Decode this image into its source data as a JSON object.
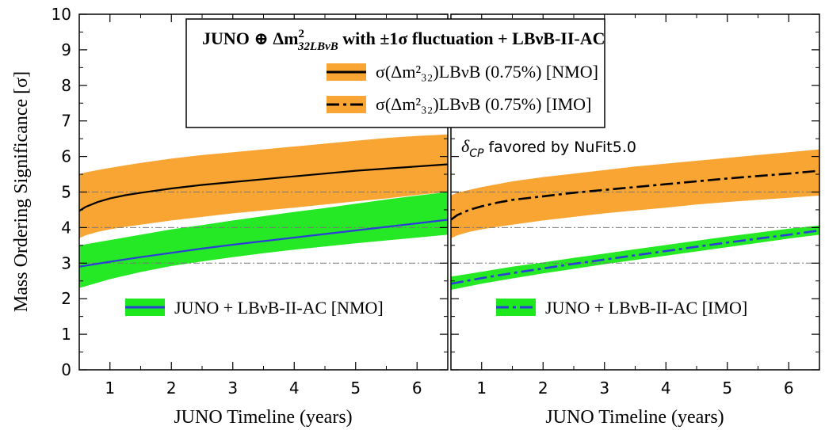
{
  "chart_data": {
    "type": "area",
    "ylabel": "Mass Ordering Significance [σ]",
    "ylim": [
      0,
      10
    ],
    "yticks": [
      "0",
      "1",
      "2",
      "3",
      "4",
      "5",
      "6",
      "7",
      "8",
      "9",
      "10"
    ],
    "reference_lines_sigma": [
      3,
      4,
      5
    ],
    "colors": {
      "orange_band": "#f8a534",
      "green_band": "#1de81d",
      "blue_line": "#2b3fd6",
      "black_line": "#000000",
      "ref_line": "#777777"
    },
    "legend": {
      "title_bold_1": "JUNO ⊕ Δm",
      "title_sup": "2",
      "title_sub": "32LBνB",
      "title_bold_2": " with ±1σ fluctuation + LBνB-II-AC",
      "nmo_label": "σ(Δm²₃₂)LBνB (0.75%) [NMO]",
      "imo_label": "σ(Δm²₃₂)LBνB (0.75%) [IMO]"
    },
    "panels": [
      {
        "xlabel": "JUNO Timeline (years)",
        "xlim": [
          0.5,
          6.5
        ],
        "xticks": [
          "1",
          "2",
          "3",
          "4",
          "5",
          "6"
        ],
        "annotation": "",
        "series": [
          {
            "name": "JUNO + LBνB-II-AC [NMO]",
            "style": "solid",
            "color": "#2b3fd6",
            "band_color": "#1de81d",
            "x": [
              0.5,
              1,
              1.5,
              2,
              2.5,
              3,
              3.5,
              4,
              4.5,
              5,
              5.5,
              6,
              6.5
            ],
            "y": [
              2.9,
              3.04,
              3.17,
              3.29,
              3.41,
              3.52,
              3.62,
              3.72,
              3.82,
              3.92,
              4.02,
              4.12,
              4.22
            ],
            "band_low": [
              2.3,
              2.55,
              2.75,
              2.92,
              3.05,
              3.17,
              3.28,
              3.38,
              3.47,
              3.56,
              3.64,
              3.72,
              3.8
            ],
            "band_high": [
              3.5,
              3.65,
              3.8,
              3.95,
              4.07,
              4.2,
              4.32,
              4.44,
              4.55,
              4.67,
              4.79,
              4.9,
              5.0
            ]
          },
          {
            "name": "σ(Δm²₃₂)LBνB (0.75%) [NMO]",
            "style": "solid",
            "color": "#000000",
            "band_color": "#f8a534",
            "x": [
              0.5,
              0.6,
              0.8,
              1,
              1.25,
              1.5,
              2,
              2.5,
              3,
              3.5,
              4,
              4.5,
              5,
              5.5,
              6,
              6.5
            ],
            "y": [
              4.47,
              4.58,
              4.72,
              4.82,
              4.91,
              4.98,
              5.1,
              5.2,
              5.28,
              5.36,
              5.44,
              5.52,
              5.6,
              5.66,
              5.72,
              5.78
            ],
            "band_low": [
              3.7,
              3.78,
              3.88,
              3.95,
              4.02,
              4.08,
              4.2,
              4.3,
              4.4,
              4.48,
              4.56,
              4.65,
              4.74,
              4.82,
              4.92,
              5.0
            ],
            "band_high": [
              5.5,
              5.55,
              5.62,
              5.68,
              5.75,
              5.82,
              5.94,
              6.04,
              6.12,
              6.2,
              6.28,
              6.36,
              6.44,
              6.52,
              6.58,
              6.62
            ]
          }
        ]
      },
      {
        "xlabel": "JUNO Timeline (years)",
        "xlim": [
          0.5,
          6.5
        ],
        "xticks": [
          "1",
          "2",
          "3",
          "4",
          "5",
          "6"
        ],
        "annotation_main": "δ",
        "annotation_sub": "CP",
        "annotation_rest": " favored by NuFit5.0",
        "series": [
          {
            "name": "JUNO + LBνB-II-AC [IMO]",
            "style": "dashdot",
            "color": "#2b3fd6",
            "band_color": "#1de81d",
            "x": [
              0.5,
              1,
              1.5,
              2,
              2.5,
              3,
              3.5,
              4,
              4.5,
              5,
              5.5,
              6,
              6.5
            ],
            "y": [
              2.42,
              2.58,
              2.72,
              2.85,
              2.98,
              3.1,
              3.22,
              3.34,
              3.46,
              3.58,
              3.69,
              3.8,
              3.92
            ],
            "band_low": [
              2.25,
              2.42,
              2.57,
              2.71,
              2.84,
              2.97,
              3.09,
              3.21,
              3.33,
              3.45,
              3.57,
              3.69,
              3.8
            ],
            "band_high": [
              2.62,
              2.76,
              2.9,
              3.02,
              3.15,
              3.27,
              3.39,
              3.51,
              3.63,
              3.75,
              3.86,
              3.97,
              4.06
            ]
          },
          {
            "name": "σ(Δm²₃₂)LBνB (0.75%) [IMO]",
            "style": "dashdot",
            "color": "#000000",
            "band_color": "#f8a534",
            "x": [
              0.5,
              0.6,
              0.8,
              1,
              1.25,
              1.5,
              2,
              2.5,
              3,
              3.5,
              4,
              4.5,
              5,
              5.5,
              6,
              6.5
            ],
            "y": [
              4.22,
              4.35,
              4.5,
              4.6,
              4.7,
              4.78,
              4.88,
              4.98,
              5.06,
              5.14,
              5.22,
              5.3,
              5.38,
              5.45,
              5.52,
              5.6
            ],
            "band_low": [
              3.7,
              3.78,
              3.88,
              3.95,
              4.02,
              4.08,
              4.2,
              4.3,
              4.4,
              4.48,
              4.56,
              4.65,
              4.72,
              4.78,
              4.84,
              4.9
            ],
            "band_high": [
              4.9,
              4.98,
              5.06,
              5.14,
              5.22,
              5.3,
              5.42,
              5.52,
              5.62,
              5.72,
              5.8,
              5.88,
              5.96,
              6.04,
              6.12,
              6.2
            ]
          }
        ]
      }
    ]
  }
}
